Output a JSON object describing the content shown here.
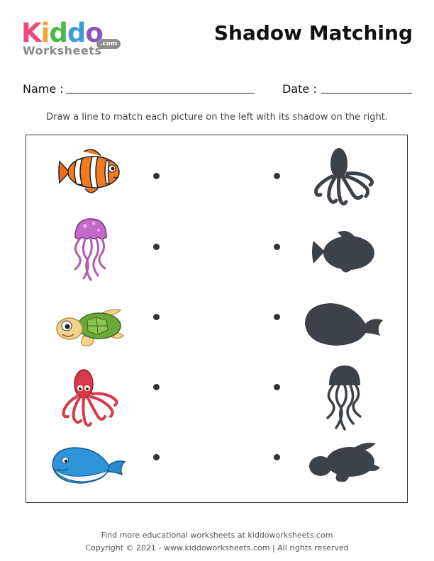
{
  "logo": {
    "letters": [
      {
        "ch": "K",
        "color": "#e84a7a"
      },
      {
        "ch": "i",
        "color": "#f2a534"
      },
      {
        "ch": "d",
        "color": "#4db848"
      },
      {
        "ch": "d",
        "color": "#3b9ad9"
      },
      {
        "ch": "o",
        "color": "#8e55b8"
      }
    ],
    "sub": "Worksheets",
    "dotcom": ".com"
  },
  "title": "Shadow Matching",
  "form": {
    "name_label": "Name :",
    "date_label": "Date :"
  },
  "instruction": "Draw a line to match each picture on the left with its shadow on the right.",
  "left_items": [
    {
      "icon": "clownfish-icon"
    },
    {
      "icon": "jellyfish-icon"
    },
    {
      "icon": "turtle-icon"
    },
    {
      "icon": "octopus-icon"
    },
    {
      "icon": "whale-icon"
    }
  ],
  "right_items": [
    {
      "icon": "octopus-shadow-icon"
    },
    {
      "icon": "fish-shadow-icon"
    },
    {
      "icon": "whale-shadow-icon"
    },
    {
      "icon": "jellyfish-shadow-icon"
    },
    {
      "icon": "turtle-shadow-icon"
    }
  ],
  "shadow_color": "#3c4247",
  "footer": {
    "line1": "Find more educational worksheets at kiddoworksheets.com",
    "line2": "Copyright © 2021 - www.kiddoworksheets.com  |  All rights reserved"
  }
}
